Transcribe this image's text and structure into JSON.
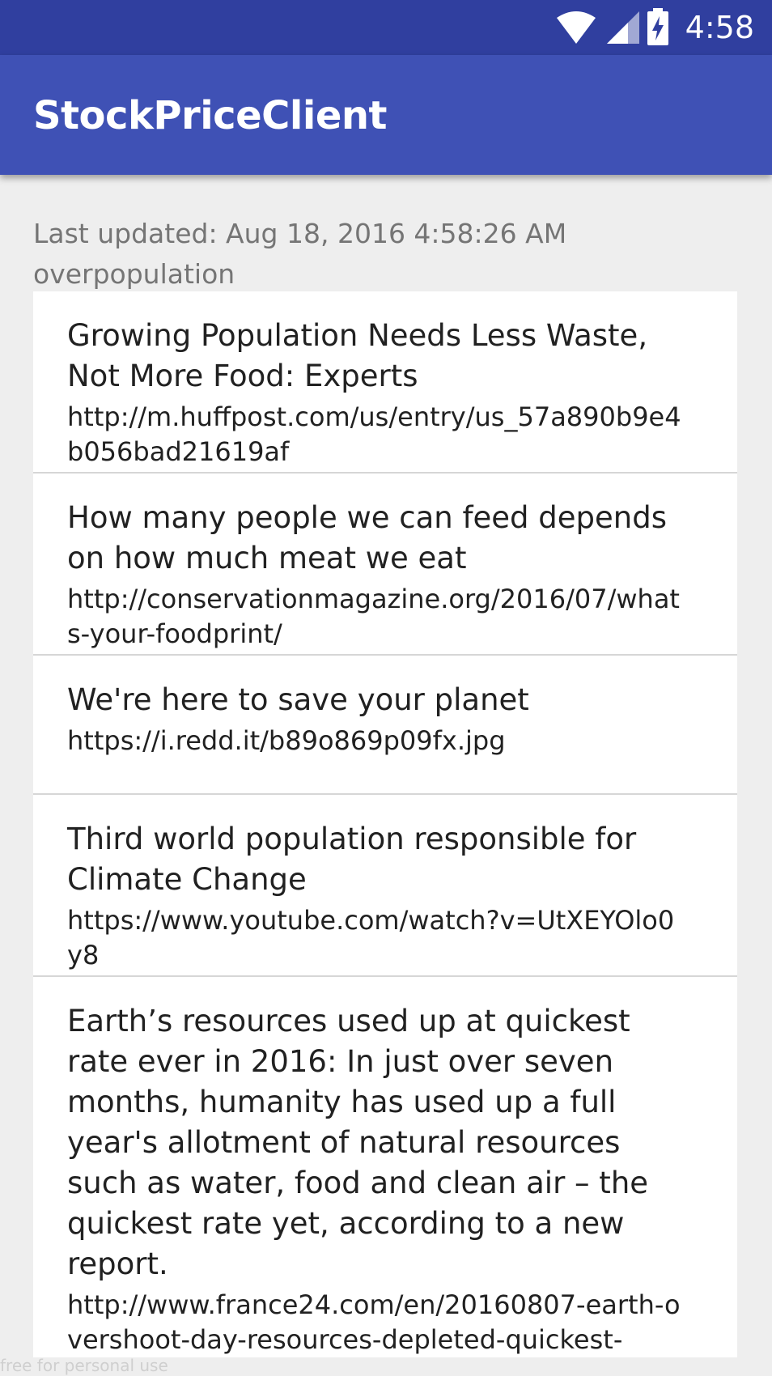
{
  "status_bar": {
    "time": "4:58",
    "icons": [
      "wifi-icon",
      "cell-signal-icon",
      "battery-charging-icon"
    ],
    "background": "#303f9f"
  },
  "app_bar": {
    "title": "StockPriceClient",
    "background": "#3f51b5"
  },
  "main": {
    "last_updated": "Last updated: Aug 18, 2016 4:58:26 AM",
    "query": "overpopulation",
    "items": [
      {
        "headline": "Growing Population Needs Less Waste, Not More Food: Experts",
        "url": "http://m.huffpost.com/us/entry/us_57a890b9e4b056bad21619af"
      },
      {
        "headline": "How many people we can feed depends on how much meat we eat",
        "url": "http://conservationmagazine.org/2016/07/whats-your-foodprint/"
      },
      {
        "headline": "We're here to save your planet",
        "url": "https://i.redd.it/b89o869p09fx.jpg"
      },
      {
        "headline": "Third world population responsible for Climate Change",
        "url": "https://www.youtube.com/watch?v=UtXEYOlo0y8"
      },
      {
        "headline": "Earth’s resources used up at quickest rate ever in 2016: In just over seven months, humanity has used up a full year's allotment of natural resources such as water, food and clean air – the quickest rate yet, according to a new report.",
        "url": "http://www.france24.com/en/20160807-earth-overshoot-day-resources-depleted-quickest-"
      }
    ]
  },
  "watermark": "free for personal use"
}
